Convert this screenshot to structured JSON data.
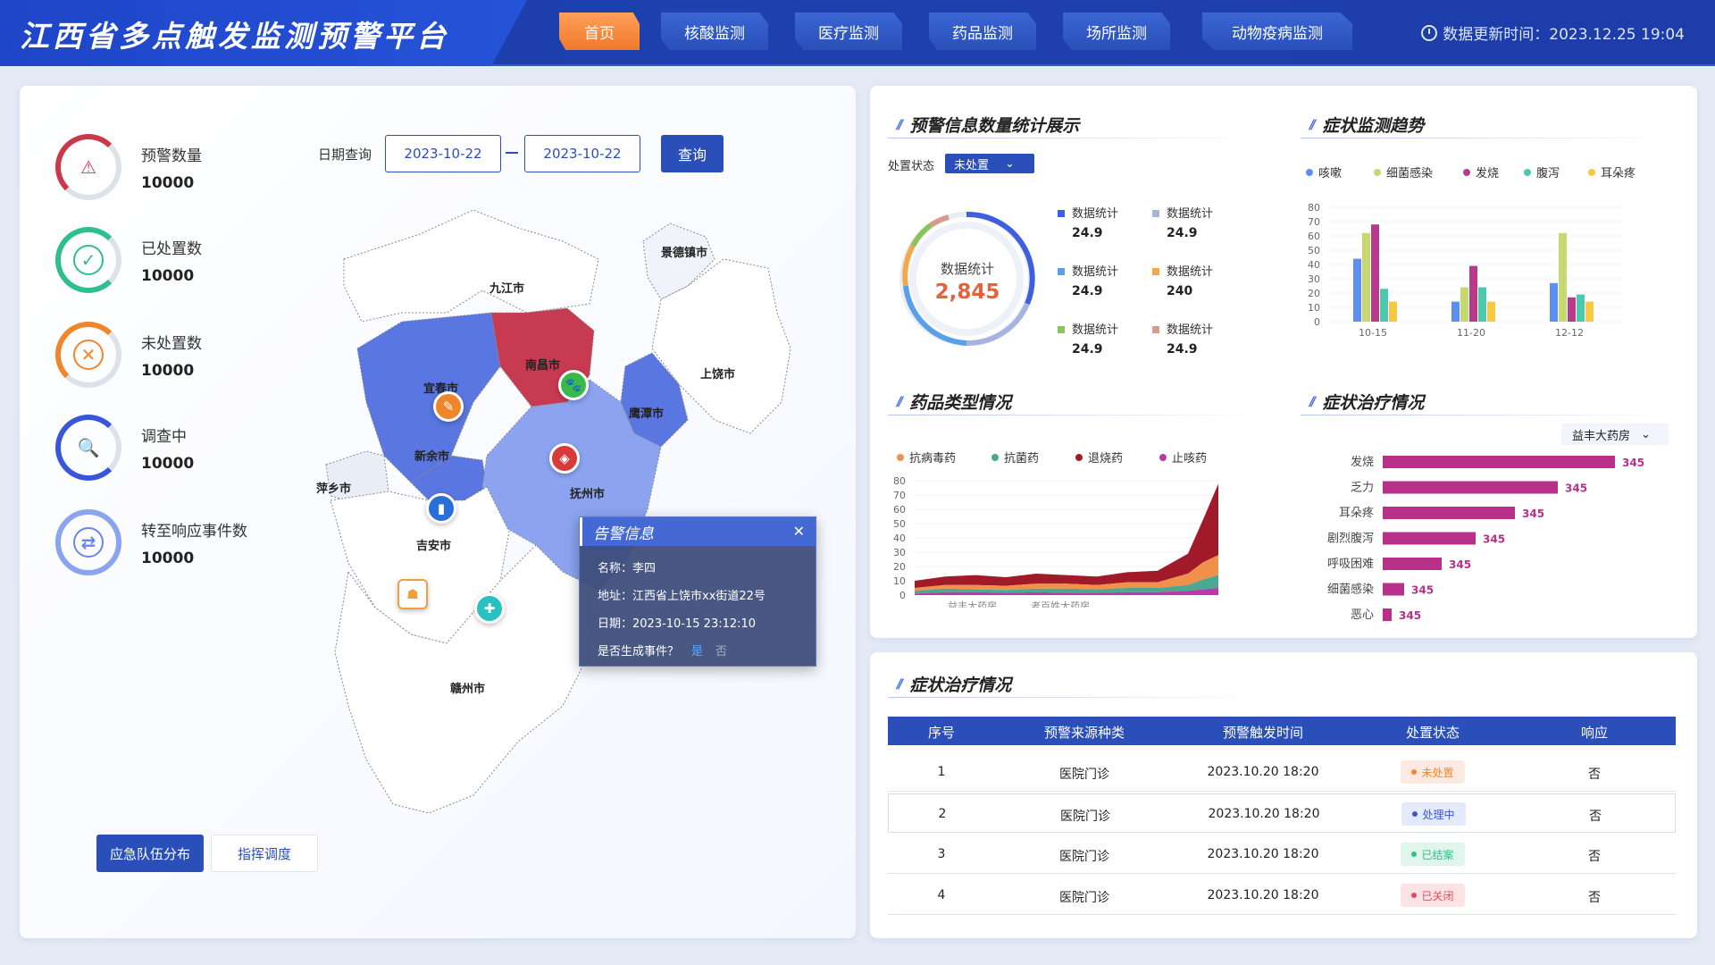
{
  "header": {
    "title": "江西省多点触发监测预警平台",
    "tabs": [
      "首页",
      "核酸监测",
      "医疗监测",
      "药品监测",
      "场所监测",
      "动物疫病监测"
    ],
    "update_label": "数据更新时间：2023.12.25 19:04"
  },
  "stats": [
    {
      "label": "预警数量",
      "value": "10000"
    },
    {
      "label": "已处置数",
      "value": "10000"
    },
    {
      "label": "未处置数",
      "value": "10000"
    },
    {
      "label": "调查中",
      "value": "10000"
    },
    {
      "label": "转至响应事件数",
      "value": "10000"
    }
  ],
  "query": {
    "label": "日期查询",
    "start": "2023-10-22",
    "end": "2023-10-22",
    "button": "查询"
  },
  "map": {
    "cities": [
      "景德镇市",
      "九江市",
      "南昌市",
      "上饶市",
      "宜春市",
      "鹰潭市",
      "新余市",
      "萍乡市",
      "抚州市",
      "吉安市",
      "赣州市"
    ]
  },
  "popup": {
    "title": "告警信息",
    "name": "名称：李四",
    "address": "地址：江西省上饶市xx街道22号",
    "date": "日期：2023-10-15 23:12:10",
    "question": "是否生成事件？",
    "yes": "是",
    "no": "否"
  },
  "bottom": {
    "btn1": "应急队伍分布",
    "btn2": "指挥调度"
  },
  "warn_stats": {
    "title": "预警信息数量统计展示",
    "filter_label": "处置状态",
    "filter_value": "未处置",
    "center_label": "数据统计",
    "center_value": "2,845",
    "items": [
      {
        "label": "数据统计",
        "value": "24.9",
        "color": "#3f5fe0"
      },
      {
        "label": "数据统计",
        "value": "24.9",
        "color": "#a8b4e0"
      },
      {
        "label": "数据统计",
        "value": "24.9",
        "color": "#5aa0e8"
      },
      {
        "label": "数据统计",
        "value": "240",
        "color": "#f4a84a"
      },
      {
        "label": "数据统计",
        "value": "24.9",
        "color": "#8ac45a"
      },
      {
        "label": "数据统计",
        "value": "24.9",
        "color": "#d89a8a"
      }
    ]
  },
  "symptom_trend": {
    "title": "症状监测趋势"
  },
  "drug_type": {
    "title": "药品类型情况"
  },
  "symptom_treat": {
    "title": "症状治疗情况",
    "select": "益丰大药房"
  },
  "table": {
    "title": "症状治疗情况",
    "headers": [
      "序号",
      "预警来源种类",
      "预警触发时间",
      "处置状态",
      "响应"
    ],
    "rows": [
      {
        "no": "1",
        "source": "医院门诊",
        "time": "2023.10.20 18:20",
        "status": "未处置",
        "resp": "否"
      },
      {
        "no": "2",
        "source": "医院门诊",
        "time": "2023.10.20 18:20",
        "status": "处理中",
        "resp": "否"
      },
      {
        "no": "3",
        "source": "医院门诊",
        "time": "2023.10.20 18:20",
        "status": "已结案",
        "resp": "否"
      },
      {
        "no": "4",
        "source": "医院门诊",
        "time": "2023.10.20 18:20",
        "status": "已关闭",
        "resp": "否"
      }
    ]
  },
  "chart_data": [
    {
      "type": "bar",
      "categories": [
        "10-15",
        "11-20",
        "12-12"
      ],
      "ylim": [
        0,
        80
      ],
      "yticks": [
        0,
        10,
        20,
        30,
        40,
        50,
        60,
        70,
        80
      ],
      "series": [
        {
          "name": "咳嗽",
          "color": "#5b8ff0",
          "values": [
            44,
            14,
            27
          ]
        },
        {
          "name": "细菌感染",
          "color": "#c8d870",
          "values": [
            62,
            24,
            62
          ]
        },
        {
          "name": "发烧",
          "color": "#b83a8a",
          "values": [
            68,
            39,
            17
          ]
        },
        {
          "name": "腹泻",
          "color": "#4ac8b0",
          "values": [
            23,
            24,
            19
          ]
        },
        {
          "name": "耳朵疼",
          "color": "#f8c840",
          "values": [
            14,
            14,
            14
          ]
        }
      ]
    },
    {
      "type": "area",
      "categories": [
        "益丰大药房",
        "老百姓大药房"
      ],
      "ylim": [
        0,
        80
      ],
      "yticks": [
        0,
        10,
        20,
        30,
        40,
        50,
        60,
        70,
        80
      ],
      "series": [
        {
          "name": "抗病毒药",
          "color": "#f0904a"
        },
        {
          "name": "抗菌药",
          "color": "#4aa890"
        },
        {
          "name": "退烧药",
          "color": "#a01a2a"
        },
        {
          "name": "止咳药",
          "color": "#b83aa8"
        }
      ]
    },
    {
      "type": "bar",
      "orientation": "horizontal",
      "categories": [
        "发烧",
        "乏力",
        "耳朵疼",
        "剧烈腹泻",
        "呼吸困难",
        "细菌感染",
        "恶心"
      ],
      "values": [
        345,
        345,
        345,
        345,
        345,
        345,
        345
      ],
      "color": "#b8308a"
    }
  ]
}
